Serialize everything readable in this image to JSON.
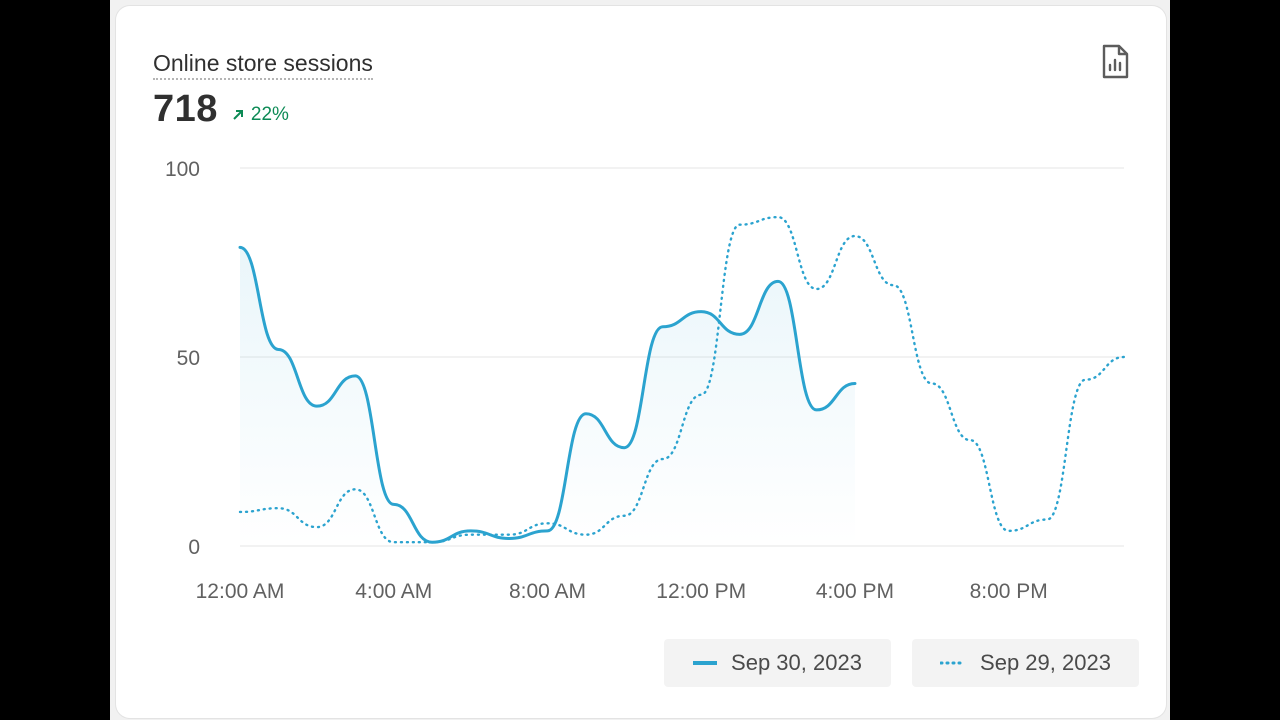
{
  "card": {
    "title": "Online store sessions",
    "value": "718",
    "change": "22%",
    "report_icon": "report-document-icon"
  },
  "colors": {
    "primary": "#2ba3cf",
    "positive": "#0c8a55",
    "grid": "#e6e6e6"
  },
  "chart_data": {
    "type": "line",
    "title": "",
    "xlabel": "",
    "ylabel": "",
    "ylim": [
      0,
      100
    ],
    "yticks": [
      "0",
      "50",
      "100"
    ],
    "xticks": [
      "12:00 AM",
      "4:00 AM",
      "8:00 AM",
      "12:00 PM",
      "4:00 PM",
      "8:00 PM"
    ],
    "x_hours": [
      0,
      1,
      2,
      3,
      4,
      5,
      6,
      7,
      8,
      9,
      10,
      11,
      12,
      13,
      14,
      15,
      16,
      17,
      18,
      19,
      20,
      21,
      22,
      23
    ],
    "series": [
      {
        "name": "Sep 30, 2023",
        "style": "solid",
        "values": [
          79,
          52,
          37,
          45,
          11,
          1,
          4,
          2,
          4,
          35,
          26,
          58,
          62,
          56,
          70,
          36,
          43
        ]
      },
      {
        "name": "Sep 29, 2023",
        "style": "dotted",
        "values": [
          9,
          10,
          5,
          15,
          1,
          1,
          3,
          3,
          6,
          3,
          8,
          23,
          40,
          85,
          87,
          68,
          82,
          69,
          43,
          28,
          4,
          7,
          44,
          50
        ]
      }
    ],
    "grid": true,
    "legend_position": "bottom-right",
    "area_fill_under_primary": true
  }
}
